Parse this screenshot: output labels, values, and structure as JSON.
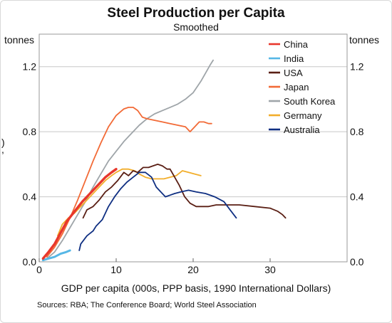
{
  "chart_data": {
    "type": "line",
    "title": "Steel Production per Capita",
    "subtitle": "Smoothed",
    "ylabel_left": "tonnes",
    "ylabel_right": "tonnes",
    "xlabel": "GDP per capita (000s, PPP basis, 1990 International Dollars)",
    "source": "Sources: RBA; The Conference Board; World Steel Association",
    "xlim": [
      0,
      40
    ],
    "ylim": [
      0,
      1.4
    ],
    "x_ticks": [
      0,
      10,
      20,
      30
    ],
    "x_tick_labels": [
      "0",
      "10",
      "20",
      "30"
    ],
    "y_ticks": [
      0,
      0.4,
      0.8,
      1.2
    ],
    "y_tick_labels": [
      "0.0",
      "0.4",
      "0.8",
      "1.2"
    ],
    "grid": true,
    "legend_position": "top-right",
    "left_margin_stubs": [
      ")",
      ","
    ],
    "series": [
      {
        "name": "China",
        "color": "#e8372c",
        "width": 3.4,
        "x": [
          0.5,
          1.2,
          2.0,
          2.8,
          3.6,
          4.6,
          5.6,
          6.6,
          7.6,
          8.6,
          9.4,
          10.0
        ],
        "y": [
          0.02,
          0.06,
          0.11,
          0.18,
          0.25,
          0.31,
          0.37,
          0.42,
          0.47,
          0.52,
          0.55,
          0.57
        ]
      },
      {
        "name": "India",
        "color": "#56b7e6",
        "width": 3.0,
        "x": [
          0.5,
          1.2,
          2.0,
          2.8,
          3.5,
          4.0
        ],
        "y": [
          0.01,
          0.02,
          0.03,
          0.05,
          0.06,
          0.07
        ]
      },
      {
        "name": "USA",
        "color": "#5a1f14",
        "width": 1.8,
        "x": [
          5.7,
          6.2,
          7.0,
          7.8,
          8.6,
          9.4,
          10.2,
          11.0,
          11.6,
          12.2,
          12.8,
          13.5,
          14.2,
          14.8,
          15.4,
          16.0,
          16.6,
          17.0,
          17.6,
          18.2,
          18.9,
          19.6,
          20.4,
          21.2,
          22.0,
          23.0,
          24.5,
          26.0,
          28.0,
          30.0,
          31.0,
          31.6,
          32.0
        ],
        "y": [
          0.27,
          0.32,
          0.34,
          0.38,
          0.43,
          0.46,
          0.5,
          0.55,
          0.53,
          0.56,
          0.55,
          0.58,
          0.58,
          0.59,
          0.6,
          0.59,
          0.57,
          0.57,
          0.52,
          0.47,
          0.4,
          0.36,
          0.34,
          0.34,
          0.34,
          0.35,
          0.35,
          0.35,
          0.34,
          0.33,
          0.31,
          0.29,
          0.27
        ]
      },
      {
        "name": "Japan",
        "color": "#f26a36",
        "width": 1.8,
        "x": [
          1.0,
          2.0,
          3.0,
          4.0,
          5.0,
          6.0,
          7.0,
          8.0,
          9.0,
          10.0,
          11.0,
          11.6,
          12.2,
          12.8,
          13.4,
          14.0,
          15.0,
          16.0,
          17.0,
          18.0,
          19.0,
          19.6,
          20.2,
          20.8,
          21.4,
          22.0,
          22.4
        ],
        "y": [
          0.03,
          0.09,
          0.17,
          0.27,
          0.38,
          0.5,
          0.62,
          0.73,
          0.83,
          0.9,
          0.94,
          0.95,
          0.95,
          0.93,
          0.89,
          0.88,
          0.87,
          0.86,
          0.85,
          0.84,
          0.83,
          0.8,
          0.83,
          0.86,
          0.86,
          0.85,
          0.85
        ]
      },
      {
        "name": "South Korea",
        "color": "#9fa5a9",
        "width": 1.8,
        "x": [
          1.0,
          2.0,
          3.0,
          4.0,
          5.0,
          6.0,
          7.0,
          8.0,
          9.0,
          10.0,
          11.0,
          12.0,
          13.0,
          14.0,
          15.0,
          16.0,
          17.0,
          18.0,
          19.0,
          20.0,
          21.0,
          21.6,
          22.2,
          22.6
        ],
        "y": [
          0.02,
          0.06,
          0.13,
          0.21,
          0.29,
          0.37,
          0.46,
          0.54,
          0.62,
          0.68,
          0.74,
          0.79,
          0.84,
          0.88,
          0.91,
          0.93,
          0.95,
          0.97,
          1.0,
          1.04,
          1.11,
          1.16,
          1.21,
          1.24
        ]
      },
      {
        "name": "Germany",
        "color": "#f2ae2b",
        "width": 1.8,
        "x": [
          2.4,
          3.0,
          3.8,
          4.6,
          5.4,
          6.2,
          7.0,
          7.8,
          8.6,
          9.4,
          10.0,
          10.8,
          11.6,
          12.4,
          13.0,
          13.8,
          14.6,
          15.4,
          16.2,
          17.0,
          17.8,
          18.6,
          19.4,
          20.2,
          21.0
        ],
        "y": [
          0.16,
          0.23,
          0.27,
          0.3,
          0.34,
          0.38,
          0.42,
          0.46,
          0.5,
          0.53,
          0.55,
          0.57,
          0.57,
          0.56,
          0.54,
          0.52,
          0.51,
          0.51,
          0.51,
          0.52,
          0.53,
          0.56,
          0.55,
          0.54,
          0.53
        ]
      },
      {
        "name": "Australia",
        "color": "#0f2f82",
        "width": 1.8,
        "x": [
          5.2,
          5.4,
          6.2,
          7.0,
          7.4,
          8.2,
          9.0,
          9.8,
          10.6,
          11.4,
          12.2,
          13.0,
          13.8,
          14.6,
          15.2,
          15.8,
          16.4,
          17.0,
          17.6,
          18.4,
          19.4,
          20.4,
          21.6,
          22.8,
          24.0,
          24.8,
          25.6
        ],
        "y": [
          0.07,
          0.11,
          0.16,
          0.19,
          0.22,
          0.26,
          0.34,
          0.4,
          0.45,
          0.49,
          0.52,
          0.55,
          0.55,
          0.52,
          0.46,
          0.43,
          0.4,
          0.41,
          0.42,
          0.43,
          0.44,
          0.43,
          0.42,
          0.4,
          0.37,
          0.32,
          0.27
        ]
      }
    ]
  }
}
